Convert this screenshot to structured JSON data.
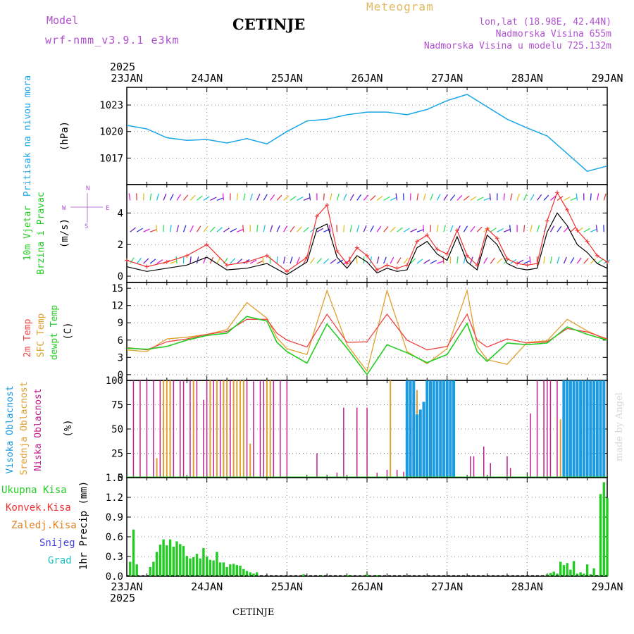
{
  "header": {
    "model_label": "Model",
    "model_name": "wrf-nmm_v3.9.1 e3km",
    "title": "CETINJE",
    "meteogram_label": "Meteogram",
    "lonlat": "lon,lat (18.98E, 42.44N)",
    "elevation": "Nadmorska Visina 655m",
    "elevation_model": "Nadmorska Visina u modelu 725.132m",
    "footer": "CETINJE",
    "credit": "made by Angel"
  },
  "colors": {
    "pressure": "#1aa6e8",
    "wind_speed": "#000000",
    "wind_gust": "#ee3030",
    "temp_2m": "#ee4444",
    "temp_sfc": "#e0a030",
    "dewpoint": "#22cc22",
    "cloud_high": "#1a9ae0",
    "cloud_mid": "#e0a030",
    "cloud_low": "#c02090",
    "precip_total": "#22cc22",
    "label_purple": "#b050d0"
  },
  "chart_data": [
    {
      "id": "time_axis",
      "type": "line",
      "year": "2025",
      "ticks": [
        "23JAN",
        "24JAN",
        "25JAN",
        "26JAN",
        "27JAN",
        "28JAN",
        "29JAN"
      ],
      "step_hours": 1,
      "total_hours": 144
    },
    {
      "id": "pressure",
      "type": "line",
      "title": "Pritisak na nivou mora",
      "ylabel": "(hPa)",
      "ylim": [
        1014.0,
        1025.0
      ],
      "yticks": [
        1017,
        1020,
        1023
      ],
      "grid": true,
      "series": [
        {
          "name": "MSLP",
          "x": [
            0,
            6,
            12,
            18,
            24,
            30,
            36,
            42,
            48,
            54,
            60,
            66,
            72,
            78,
            84,
            90,
            96,
            102,
            108,
            114,
            120,
            126,
            132,
            138,
            144
          ],
          "values": [
            1020.7,
            1020.3,
            1019.3,
            1019.0,
            1019.1,
            1018.7,
            1019.2,
            1018.6,
            1020.0,
            1021.2,
            1021.4,
            1021.9,
            1022.2,
            1022.2,
            1021.9,
            1022.5,
            1023.5,
            1024.2,
            1022.8,
            1021.4,
            1020.4,
            1019.5,
            1017.5,
            1015.5,
            1016.1
          ]
        }
      ]
    },
    {
      "id": "wind",
      "type": "line",
      "title": "10m Vjetar",
      "subtitle": "Brzina i Pravac",
      "ylabel": "(m/s)",
      "ylim": [
        -0.4,
        5.8
      ],
      "yticks": [
        0,
        2,
        4
      ],
      "grid": true,
      "compass": {
        "n": "N",
        "s": "S",
        "e": "E",
        "w": "W"
      },
      "series": [
        {
          "name": "Speed",
          "x": [
            0,
            6,
            12,
            18,
            24,
            30,
            36,
            42,
            48,
            54,
            57,
            60,
            63,
            66,
            69,
            72,
            75,
            78,
            81,
            84,
            87,
            90,
            93,
            96,
            99,
            102,
            105,
            108,
            111,
            114,
            117,
            120,
            123,
            126,
            129,
            132,
            135,
            138,
            141,
            144
          ],
          "values": [
            0.6,
            0.3,
            0.5,
            0.7,
            1.2,
            0.4,
            0.5,
            0.8,
            0.1,
            0.9,
            3.0,
            3.3,
            1.2,
            0.5,
            1.3,
            0.9,
            0.2,
            0.5,
            0.3,
            0.4,
            1.8,
            2.2,
            1.4,
            1.0,
            2.5,
            0.9,
            0.4,
            2.6,
            2.0,
            0.8,
            0.5,
            0.4,
            0.5,
            2.8,
            4.0,
            3.2,
            2.0,
            1.5,
            0.8,
            0.5
          ]
        },
        {
          "name": "Gust",
          "x": [
            0,
            6,
            12,
            18,
            24,
            30,
            36,
            42,
            48,
            54,
            57,
            60,
            63,
            66,
            69,
            72,
            75,
            78,
            81,
            84,
            87,
            90,
            93,
            96,
            99,
            102,
            105,
            108,
            111,
            114,
            117,
            120,
            123,
            126,
            129,
            132,
            135,
            138,
            141,
            144
          ],
          "values": [
            1.0,
            0.6,
            0.9,
            1.3,
            2.0,
            0.7,
            0.9,
            1.3,
            0.3,
            1.2,
            3.8,
            4.5,
            1.6,
            0.8,
            1.8,
            1.3,
            0.4,
            0.7,
            0.5,
            0.7,
            2.2,
            2.6,
            1.7,
            1.4,
            2.9,
            1.3,
            0.7,
            3.0,
            2.4,
            1.1,
            0.8,
            0.7,
            0.8,
            3.5,
            5.3,
            4.2,
            2.9,
            2.2,
            1.3,
            0.9
          ]
        }
      ],
      "barb_rows": [
        0.8,
        2.8,
        4.8
      ],
      "barb_colors": [
        "#3030e0",
        "#7020c0",
        "#20c0e0",
        "#30e060",
        "#e0c020",
        "#e04040",
        "#e020e0"
      ]
    },
    {
      "id": "temperature",
      "type": "line",
      "ylabel": "(C)",
      "labels": [
        "2m Temp",
        "SFC Temp",
        "dewpt Temp"
      ],
      "ylim": [
        -1.0,
        16.0
      ],
      "yticks": [
        0,
        3,
        6,
        9,
        12,
        15
      ],
      "grid": true,
      "series": [
        {
          "name": "2m Temp",
          "x": [
            0,
            6,
            12,
            18,
            24,
            30,
            36,
            42,
            45,
            48,
            54,
            60,
            66,
            72,
            78,
            84,
            90,
            96,
            102,
            105,
            108,
            114,
            120,
            126,
            132,
            138,
            144
          ],
          "values": [
            4.7,
            4.3,
            5.7,
            6.2,
            7.0,
            7.5,
            9.6,
            9.6,
            7.2,
            6.0,
            4.8,
            10.5,
            5.6,
            5.7,
            10.5,
            6.0,
            4.3,
            4.9,
            10.5,
            6.0,
            4.8,
            6.2,
            5.5,
            5.7,
            8.0,
            7.4,
            6.2
          ]
        },
        {
          "name": "SFC Temp",
          "x": [
            0,
            6,
            12,
            18,
            24,
            30,
            36,
            42,
            45,
            48,
            54,
            60,
            66,
            72,
            78,
            84,
            90,
            96,
            102,
            105,
            108,
            114,
            120,
            126,
            132,
            138,
            144
          ],
          "values": [
            4.3,
            4.0,
            6.2,
            6.5,
            7.0,
            7.8,
            12.5,
            9.8,
            6.4,
            4.5,
            3.5,
            14.6,
            5.2,
            0.6,
            14.6,
            4.0,
            1.9,
            4.5,
            14.6,
            5.0,
            2.6,
            1.8,
            5.6,
            5.9,
            9.6,
            7.6,
            6.0
          ]
        },
        {
          "name": "dewpt Temp",
          "x": [
            0,
            6,
            12,
            18,
            24,
            30,
            36,
            42,
            45,
            48,
            54,
            60,
            66,
            72,
            78,
            84,
            90,
            96,
            102,
            105,
            108,
            114,
            120,
            126,
            132,
            138,
            144
          ],
          "values": [
            4.6,
            4.4,
            4.9,
            6.0,
            6.8,
            7.2,
            10.1,
            9.3,
            5.6,
            4.0,
            2.0,
            8.8,
            4.6,
            0.0,
            5.2,
            3.8,
            2.1,
            3.5,
            8.9,
            4.0,
            2.3,
            5.5,
            5.2,
            5.5,
            8.3,
            7.0,
            6.0
          ]
        }
      ]
    },
    {
      "id": "clouds",
      "type": "bar",
      "labels": [
        "Visoka Oblacnost",
        "Srednja Oblacnost",
        "Niska Oblacnost"
      ],
      "ylabel": "(%)",
      "ylim": [
        0,
        100
      ],
      "yticks": [
        0,
        25,
        50,
        75,
        100
      ],
      "grid": true,
      "series": [
        {
          "name": "Niska",
          "x": [
            2,
            4,
            6,
            8,
            10,
            11,
            13,
            14,
            16,
            17,
            19,
            21,
            23,
            24,
            26,
            28,
            29,
            31,
            33,
            34,
            36,
            38,
            40,
            41,
            44,
            46,
            48,
            57,
            63,
            65,
            69,
            72,
            75,
            78,
            81,
            83,
            90,
            93,
            103,
            104,
            107,
            109,
            114,
            115,
            121,
            123,
            125,
            126,
            127,
            129,
            131,
            133,
            135,
            137,
            139,
            141,
            143
          ],
          "values": [
            100,
            100,
            100,
            100,
            100,
            68,
            100,
            100,
            100,
            100,
            100,
            100,
            80,
            100,
            100,
            100,
            100,
            100,
            100,
            100,
            100,
            100,
            100,
            100,
            100,
            100,
            100,
            25,
            5,
            72,
            72,
            72,
            5,
            8,
            8,
            6,
            100,
            100,
            22,
            22,
            32,
            15,
            22,
            10,
            66,
            100,
            100,
            100,
            100,
            100,
            100,
            100,
            100,
            100,
            100,
            100,
            100
          ]
        },
        {
          "name": "Srednja",
          "x": [
            9,
            11,
            12,
            13,
            20,
            25,
            27,
            29,
            30,
            32,
            33,
            34,
            35,
            37,
            42,
            43,
            79,
            85,
            86,
            87,
            89,
            91,
            95,
            130,
            134,
            135,
            136,
            137,
            138,
            139,
            140,
            141,
            142,
            143
          ],
          "values": [
            20,
            100,
            100,
            100,
            100,
            100,
            100,
            100,
            100,
            100,
            100,
            100,
            100,
            35,
            100,
            100,
            100,
            80,
            88,
            90,
            70,
            88,
            100,
            60,
            80,
            100,
            92,
            38,
            36,
            30,
            96,
            98,
            100,
            100
          ]
        },
        {
          "name": "Visoka",
          "x": [
            84,
            85,
            86,
            87,
            88,
            89,
            90,
            91,
            92,
            93,
            94,
            95,
            96,
            97,
            98,
            131,
            132,
            133,
            134,
            135,
            136,
            137,
            138,
            139,
            140,
            141,
            142,
            143
          ],
          "values": [
            100,
            100,
            100,
            65,
            70,
            78,
            100,
            100,
            100,
            100,
            100,
            100,
            100,
            100,
            100,
            100,
            100,
            100,
            100,
            100,
            100,
            100,
            100,
            100,
            100,
            100,
            100,
            100
          ]
        }
      ]
    },
    {
      "id": "precip",
      "type": "bar",
      "ylabel": "1hr Precip (mm)",
      "labels": [
        "Ukupna Kisa",
        "Konvek.Kisa",
        "Zaledj.Kisa",
        "Snijeg",
        "Grad"
      ],
      "ylim": [
        0,
        1.5
      ],
      "yticks": [
        0,
        0.3,
        0.6,
        0.9,
        1.2,
        1.5
      ],
      "grid": true,
      "series": [
        {
          "name": "Ukupna Kisa",
          "x": [
            1,
            2,
            3,
            7,
            8,
            9,
            10,
            11,
            12,
            13,
            14,
            15,
            16,
            17,
            18,
            19,
            20,
            21,
            22,
            23,
            24,
            25,
            26,
            27,
            28,
            29,
            30,
            31,
            32,
            33,
            34,
            35,
            36,
            37,
            38,
            39,
            53,
            58,
            66,
            67,
            72,
            75,
            126,
            127,
            128,
            129,
            130,
            131,
            132,
            133,
            134,
            135,
            136,
            137,
            138,
            139,
            140,
            141,
            142,
            143,
            144
          ],
          "values": [
            0.22,
            0.71,
            0.18,
            0.14,
            0.22,
            0.37,
            0.48,
            0.56,
            0.47,
            0.56,
            0.45,
            0.53,
            0.49,
            0.46,
            0.31,
            0.27,
            0.29,
            0.34,
            0.27,
            0.43,
            0.3,
            0.25,
            0.24,
            0.37,
            0.21,
            0.21,
            0.14,
            0.18,
            0.19,
            0.17,
            0.16,
            0.11,
            0.08,
            0.06,
            0.04,
            0.06,
            0.03,
            0.02,
            0.02,
            0.02,
            0.03,
            0.02,
            0.03,
            0.05,
            0.07,
            0.04,
            0.22,
            0.17,
            0.2,
            0.1,
            0.23,
            0.04,
            0.06,
            0.04,
            0.18,
            0.03,
            0.12,
            0.02,
            1.25,
            1.43,
            1.19
          ]
        }
      ]
    }
  ]
}
